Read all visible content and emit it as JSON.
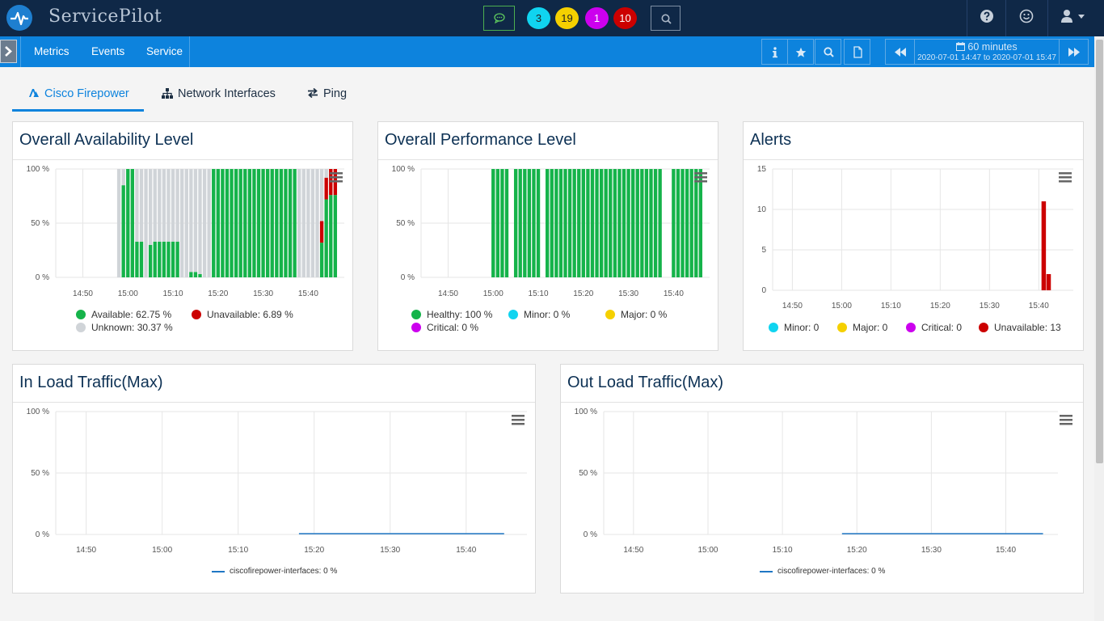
{
  "app": {
    "title": "ServicePilot"
  },
  "topbar": {
    "badges": [
      {
        "count": "3",
        "color": "#10d4f0",
        "text_color": "#222"
      },
      {
        "count": "19",
        "color": "#f5d000",
        "text_color": "#222"
      },
      {
        "count": "1",
        "color": "#cc00ee",
        "text_color": "#ffffff"
      },
      {
        "count": "10",
        "color": "#cc0000",
        "text_color": "#ffffff"
      }
    ],
    "icons": [
      "chat-icon",
      "search-icon",
      "help-icon",
      "smiley-icon",
      "user-icon",
      "caret-down-icon"
    ]
  },
  "nav": {
    "items": [
      {
        "label": "Metrics"
      },
      {
        "label": "Events"
      },
      {
        "label": "Service"
      }
    ],
    "tools": [
      "info-icon",
      "star-icon",
      "search-icon",
      "file-icon"
    ]
  },
  "timeframe": {
    "label": "60 minutes",
    "range": "2020-07-01 14:47 to 2020-07-01 15:47"
  },
  "tabs": [
    {
      "label": "Cisco Firepower",
      "icon": "firepower-icon",
      "active": true
    },
    {
      "label": "Network Interfaces",
      "icon": "network-icon",
      "active": false
    },
    {
      "label": "Ping",
      "icon": "exchange-icon",
      "active": false
    }
  ],
  "colors": {
    "accent": "#0d83dd",
    "healthy": "#15b34a",
    "unknown": "#d0d4d8",
    "unavailable": "#cc0000",
    "minor": "#10d4f0",
    "major": "#f5d000",
    "critical": "#cc00ee",
    "traffic_line": "#1f77c4"
  },
  "panels": {
    "availability": {
      "title": "Overall Availability Level",
      "legend": [
        {
          "label": "Available: 62.75 %",
          "color": "#15b34a"
        },
        {
          "label": "Unavailable: 6.89 %",
          "color": "#cc0000"
        },
        {
          "label": "Unknown: 30.37 %",
          "color": "#d0d4d8"
        }
      ]
    },
    "performance": {
      "title": "Overall Performance Level",
      "legend": [
        {
          "label": "Healthy: 100 %",
          "color": "#15b34a"
        },
        {
          "label": "Minor: 0 %",
          "color": "#10d4f0"
        },
        {
          "label": "Major: 0 %",
          "color": "#f5d000"
        },
        {
          "label": "Critical: 0 %",
          "color": "#cc00ee"
        }
      ]
    },
    "alerts": {
      "title": "Alerts",
      "legend": [
        {
          "label": "Minor: 0",
          "color": "#10d4f0"
        },
        {
          "label": "Major: 0",
          "color": "#f5d000"
        },
        {
          "label": "Critical: 0",
          "color": "#cc00ee"
        },
        {
          "label": "Unavailable: 13",
          "color": "#cc0000"
        }
      ]
    },
    "in_traffic": {
      "title": "In Load Traffic(Max)",
      "legend": [
        {
          "label": "ciscofirepower-interfaces: 0 %",
          "color": "#1f77c4"
        }
      ]
    },
    "out_traffic": {
      "title": "Out Load Traffic(Max)",
      "legend": [
        {
          "label": "ciscofirepower-interfaces: 0 %",
          "color": "#1f77c4"
        }
      ]
    }
  },
  "chart_data": [
    {
      "id": "availability",
      "type": "bar",
      "stacked": true,
      "x_unit": "minute",
      "x_ticks": [
        "14:50",
        "15:00",
        "15:10",
        "15:20",
        "15:30",
        "15:40"
      ],
      "y_ticks": [
        "0 %",
        "50 %",
        "100 %"
      ],
      "ylim": [
        0,
        100
      ],
      "x": [
        "14:58",
        "14:59",
        "15:00",
        "15:01",
        "15:02",
        "15:03",
        "15:04",
        "15:05",
        "15:06",
        "15:07",
        "15:08",
        "15:09",
        "15:10",
        "15:11",
        "15:12",
        "15:13",
        "15:14",
        "15:15",
        "15:16",
        "15:17",
        "15:18",
        "15:19",
        "15:20",
        "15:21",
        "15:22",
        "15:23",
        "15:24",
        "15:25",
        "15:26",
        "15:27",
        "15:28",
        "15:29",
        "15:30",
        "15:31",
        "15:32",
        "15:33",
        "15:34",
        "15:35",
        "15:36",
        "15:37",
        "15:38",
        "15:39",
        "15:40",
        "15:41",
        "15:42",
        "15:43",
        "15:44",
        "15:45",
        "15:46"
      ],
      "series": [
        {
          "name": "Available",
          "color": "#15b34a",
          "values": [
            0,
            85,
            100,
            100,
            33,
            33,
            0,
            30,
            33,
            33,
            33,
            33,
            33,
            33,
            0,
            0,
            5,
            5,
            3,
            0,
            0,
            100,
            100,
            100,
            100,
            100,
            100,
            100,
            100,
            100,
            100,
            100,
            100,
            100,
            100,
            100,
            100,
            100,
            100,
            100,
            0,
            0,
            0,
            0,
            0,
            32,
            72,
            76,
            76
          ]
        },
        {
          "name": "Unavailable",
          "color": "#cc0000",
          "values": [
            0,
            0,
            0,
            0,
            0,
            0,
            0,
            0,
            0,
            0,
            0,
            0,
            0,
            0,
            0,
            0,
            0,
            0,
            0,
            0,
            0,
            0,
            0,
            0,
            0,
            0,
            0,
            0,
            0,
            0,
            0,
            0,
            0,
            0,
            0,
            0,
            0,
            0,
            0,
            0,
            0,
            0,
            0,
            0,
            0,
            20,
            20,
            24,
            24
          ]
        },
        {
          "name": "Unknown",
          "color": "#d0d4d8",
          "values": [
            100,
            15,
            0,
            0,
            67,
            67,
            100,
            70,
            67,
            67,
            67,
            67,
            67,
            67,
            100,
            100,
            95,
            95,
            97,
            100,
            100,
            0,
            0,
            0,
            0,
            0,
            0,
            0,
            0,
            0,
            0,
            0,
            0,
            0,
            0,
            0,
            0,
            0,
            0,
            0,
            100,
            100,
            100,
            100,
            100,
            48,
            8,
            0,
            0
          ]
        }
      ]
    },
    {
      "id": "performance",
      "type": "bar",
      "stacked": true,
      "x_unit": "minute",
      "x_ticks": [
        "14:50",
        "15:00",
        "15:10",
        "15:20",
        "15:30",
        "15:40"
      ],
      "y_ticks": [
        "0 %",
        "50 %",
        "100 %"
      ],
      "ylim": [
        0,
        100
      ],
      "x": [
        "15:00",
        "15:01",
        "15:02",
        "15:03",
        "15:05",
        "15:06",
        "15:07",
        "15:08",
        "15:09",
        "15:10",
        "15:12",
        "15:13",
        "15:14",
        "15:15",
        "15:16",
        "15:17",
        "15:18",
        "15:19",
        "15:20",
        "15:21",
        "15:22",
        "15:23",
        "15:24",
        "15:25",
        "15:26",
        "15:27",
        "15:28",
        "15:29",
        "15:30",
        "15:31",
        "15:32",
        "15:33",
        "15:34",
        "15:35",
        "15:36",
        "15:37",
        "15:40",
        "15:41",
        "15:42",
        "15:43",
        "15:44",
        "15:45",
        "15:46"
      ],
      "series": [
        {
          "name": "Healthy",
          "color": "#15b34a",
          "values": [
            100,
            100,
            100,
            100,
            100,
            100,
            100,
            100,
            100,
            100,
            100,
            100,
            100,
            100,
            100,
            100,
            100,
            100,
            100,
            100,
            100,
            100,
            100,
            100,
            100,
            100,
            100,
            100,
            100,
            100,
            100,
            100,
            100,
            100,
            100,
            100,
            100,
            100,
            100,
            100,
            100,
            100,
            100
          ]
        }
      ]
    },
    {
      "id": "alerts",
      "type": "bar",
      "x_unit": "minute",
      "x_ticks": [
        "14:50",
        "15:00",
        "15:10",
        "15:20",
        "15:30",
        "15:40"
      ],
      "y_ticks": [
        "0",
        "5",
        "10",
        "15"
      ],
      "ylim": [
        0,
        15
      ],
      "x": [
        "15:41",
        "15:42"
      ],
      "series": [
        {
          "name": "Unavailable",
          "color": "#cc0000",
          "values": [
            11,
            2
          ]
        }
      ]
    },
    {
      "id": "in_traffic",
      "type": "line",
      "x_unit": "minute",
      "x_ticks": [
        "14:50",
        "15:00",
        "15:10",
        "15:20",
        "15:30",
        "15:40"
      ],
      "y_ticks": [
        "0 %",
        "50 %",
        "100 %"
      ],
      "ylim": [
        0,
        100
      ],
      "series": [
        {
          "name": "ciscofirepower-interfaces",
          "color": "#1f77c4",
          "x": [
            "15:18",
            "15:45"
          ],
          "values": [
            0,
            0
          ]
        }
      ]
    },
    {
      "id": "out_traffic",
      "type": "line",
      "x_unit": "minute",
      "x_ticks": [
        "14:50",
        "15:00",
        "15:10",
        "15:20",
        "15:30",
        "15:40"
      ],
      "y_ticks": [
        "0 %",
        "50 %",
        "100 %"
      ],
      "ylim": [
        0,
        100
      ],
      "series": [
        {
          "name": "ciscofirepower-interfaces",
          "color": "#1f77c4",
          "x": [
            "15:18",
            "15:45"
          ],
          "values": [
            0,
            0
          ]
        }
      ]
    }
  ]
}
